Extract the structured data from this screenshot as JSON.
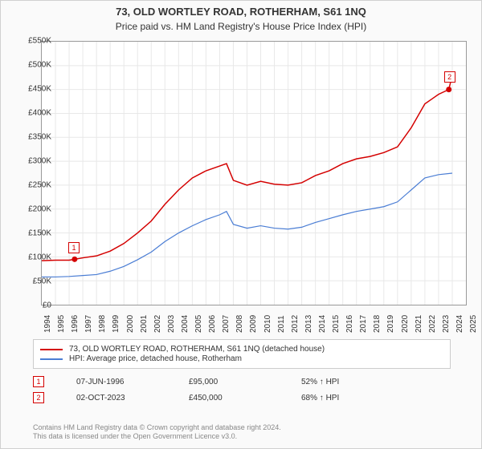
{
  "title": "73, OLD WORTLEY ROAD, ROTHERHAM, S61 1NQ",
  "subtitle": "Price paid vs. HM Land Registry's House Price Index (HPI)",
  "chart": {
    "type": "line",
    "background_color": "#ffffff",
    "grid_color": "#e8e8e8",
    "border_color": "#999999",
    "x": {
      "min": 1994,
      "max": 2025,
      "ticks": [
        1994,
        1995,
        1996,
        1997,
        1998,
        1999,
        2000,
        2001,
        2002,
        2003,
        2004,
        2005,
        2006,
        2007,
        2008,
        2009,
        2010,
        2011,
        2012,
        2013,
        2014,
        2015,
        2016,
        2017,
        2018,
        2019,
        2020,
        2021,
        2022,
        2023,
        2024,
        2025
      ],
      "label_fontsize": 10
    },
    "y": {
      "min": 0,
      "max": 550000,
      "tick_step": 50000,
      "tick_labels": [
        "£0",
        "£50K",
        "£100K",
        "£150K",
        "£200K",
        "£250K",
        "£300K",
        "£350K",
        "£400K",
        "£450K",
        "£500K",
        "£550K"
      ],
      "label_fontsize": 10
    },
    "series": [
      {
        "id": "property",
        "label": "73, OLD WORTLEY ROAD, ROTHERHAM, S61 1NQ (detached house)",
        "color": "#d40000",
        "line_width": 1.5,
        "points": [
          [
            1994,
            92000
          ],
          [
            1995,
            93000
          ],
          [
            1996,
            93000
          ],
          [
            1996.4,
            95000
          ],
          [
            1997,
            98000
          ],
          [
            1998,
            102000
          ],
          [
            1999,
            112000
          ],
          [
            2000,
            128000
          ],
          [
            2001,
            150000
          ],
          [
            2002,
            175000
          ],
          [
            2003,
            210000
          ],
          [
            2004,
            240000
          ],
          [
            2005,
            265000
          ],
          [
            2006,
            280000
          ],
          [
            2007,
            290000
          ],
          [
            2007.5,
            295000
          ],
          [
            2008,
            260000
          ],
          [
            2009,
            250000
          ],
          [
            2010,
            258000
          ],
          [
            2011,
            252000
          ],
          [
            2012,
            250000
          ],
          [
            2013,
            255000
          ],
          [
            2014,
            270000
          ],
          [
            2015,
            280000
          ],
          [
            2016,
            295000
          ],
          [
            2017,
            305000
          ],
          [
            2018,
            310000
          ],
          [
            2019,
            318000
          ],
          [
            2020,
            330000
          ],
          [
            2021,
            370000
          ],
          [
            2022,
            420000
          ],
          [
            2022.5,
            430000
          ],
          [
            2023,
            440000
          ],
          [
            2023.75,
            450000
          ],
          [
            2024,
            480000
          ]
        ]
      },
      {
        "id": "hpi",
        "label": "HPI: Average price, detached house, Rotherham",
        "color": "#4a7dd4",
        "line_width": 1.2,
        "points": [
          [
            1994,
            58000
          ],
          [
            1995,
            58000
          ],
          [
            1996,
            59000
          ],
          [
            1997,
            61000
          ],
          [
            1998,
            63000
          ],
          [
            1999,
            70000
          ],
          [
            2000,
            80000
          ],
          [
            2001,
            94000
          ],
          [
            2002,
            110000
          ],
          [
            2003,
            132000
          ],
          [
            2004,
            150000
          ],
          [
            2005,
            165000
          ],
          [
            2006,
            178000
          ],
          [
            2007,
            188000
          ],
          [
            2007.5,
            195000
          ],
          [
            2008,
            168000
          ],
          [
            2009,
            160000
          ],
          [
            2010,
            165000
          ],
          [
            2011,
            160000
          ],
          [
            2012,
            158000
          ],
          [
            2013,
            162000
          ],
          [
            2014,
            172000
          ],
          [
            2015,
            180000
          ],
          [
            2016,
            188000
          ],
          [
            2017,
            195000
          ],
          [
            2018,
            200000
          ],
          [
            2019,
            205000
          ],
          [
            2020,
            215000
          ],
          [
            2021,
            240000
          ],
          [
            2022,
            265000
          ],
          [
            2023,
            272000
          ],
          [
            2024,
            275000
          ]
        ]
      }
    ],
    "markers": [
      {
        "n": "1",
        "x": 1996.4,
        "y": 95000,
        "color": "#d40000"
      },
      {
        "n": "2",
        "x": 2023.75,
        "y": 450000,
        "color": "#d40000"
      }
    ]
  },
  "legend": {
    "items": [
      {
        "color": "#d40000",
        "label": "73, OLD WORTLEY ROAD, ROTHERHAM, S61 1NQ (detached house)"
      },
      {
        "color": "#4a7dd4",
        "label": "HPI: Average price, detached house, Rotherham"
      }
    ]
  },
  "transactions": [
    {
      "n": "1",
      "color": "#d40000",
      "date": "07-JUN-1996",
      "price": "£95,000",
      "delta": "52% ↑ HPI"
    },
    {
      "n": "2",
      "color": "#d40000",
      "date": "02-OCT-2023",
      "price": "£450,000",
      "delta": "68% ↑ HPI"
    }
  ],
  "footer_line1": "Contains HM Land Registry data © Crown copyright and database right 2024.",
  "footer_line2": "This data is licensed under the Open Government Licence v3.0."
}
